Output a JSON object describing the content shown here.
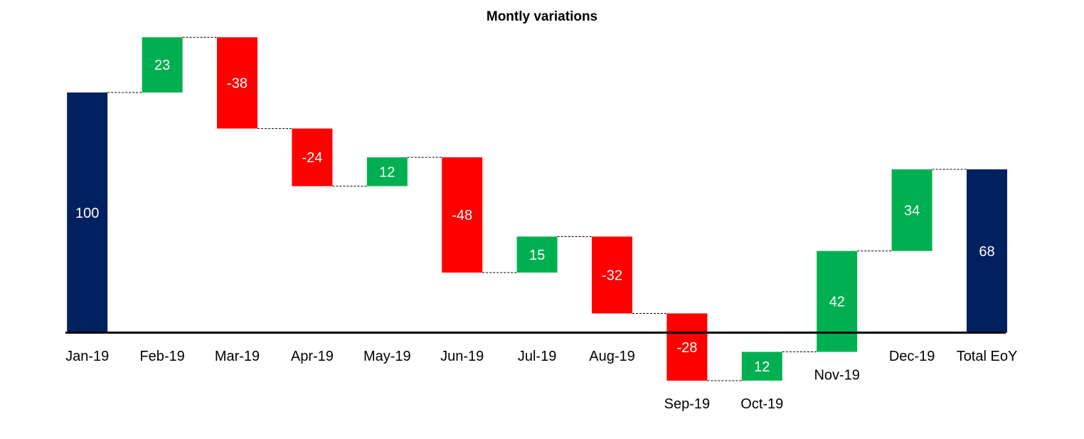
{
  "chart_data": {
    "type": "bar",
    "subtype": "waterfall",
    "title": "Montly variations",
    "xlabel": "",
    "ylabel": "",
    "categories": [
      "Jan-19",
      "Feb-19",
      "Mar-19",
      "Apr-19",
      "May-19",
      "Jun-19",
      "Jul-19",
      "Aug-19",
      "Sep-19",
      "Oct-19",
      "Nov-19",
      "Dec-19",
      "Total EoY"
    ],
    "values": [
      100,
      23,
      -38,
      -24,
      12,
      -48,
      15,
      -32,
      -28,
      12,
      42,
      34,
      68
    ],
    "kinds": [
      "total",
      "delta",
      "delta",
      "delta",
      "delta",
      "delta",
      "delta",
      "delta",
      "delta",
      "delta",
      "delta",
      "delta",
      "total"
    ],
    "value_labels": [
      "100",
      "23",
      "-38",
      "-24",
      "12",
      "-48",
      "15",
      "-32",
      "-28",
      "12",
      "42",
      "34",
      "68"
    ],
    "ylim": [
      -22,
      126
    ],
    "grid": false,
    "legend": "none",
    "colors": {
      "total": "#002060",
      "increase": "#00B050",
      "decrease": "#FF0000",
      "label_on_bar": "#FFFFFF",
      "axis": "#000000"
    }
  }
}
